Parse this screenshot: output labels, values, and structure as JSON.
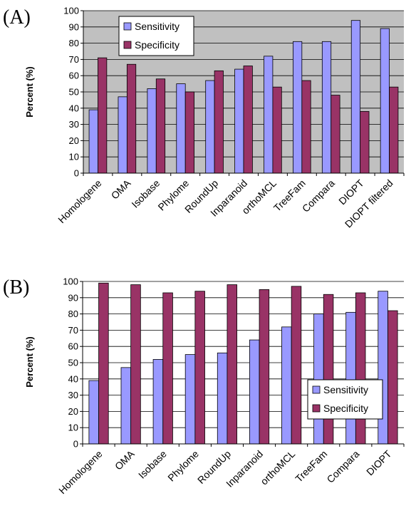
{
  "chart_data": [
    {
      "type": "bar",
      "panel": "(A)",
      "ylabel": "Percent (%)",
      "ylim": [
        0,
        100
      ],
      "yticks": [
        "0",
        "10",
        "20",
        "30",
        "40",
        "50",
        "60",
        "70",
        "80",
        "90",
        "100"
      ],
      "categories": [
        "Homologene",
        "OMA",
        "Isobase",
        "Phylome",
        "RoundUp",
        "Inparanoid",
        "orthoMCL",
        "TreeFam",
        "Compara",
        "DIOPT",
        "DIOPT filtered"
      ],
      "series": [
        {
          "name": "Sensitivity",
          "color": "#9999ff",
          "values": [
            39,
            47,
            52,
            55,
            57,
            64,
            72,
            81,
            81,
            94,
            89
          ]
        },
        {
          "name": "Specificity",
          "color": "#993366",
          "values": [
            71,
            67,
            58,
            50,
            63,
            66,
            53,
            57,
            48,
            38,
            53
          ]
        }
      ],
      "grid": true,
      "plot_background": "#c0c0c0",
      "legend": "top-left"
    },
    {
      "type": "bar",
      "panel": "(B)",
      "ylabel": "Percent (%)",
      "ylim": [
        0,
        100
      ],
      "yticks": [
        "0",
        "10",
        "20",
        "30",
        "40",
        "50",
        "60",
        "70",
        "80",
        "90",
        "100"
      ],
      "categories": [
        "Homologene",
        "OMA",
        "Isobase",
        "Phylome",
        "RoundUp",
        "Inparanoid",
        "orthoMCL",
        "TreeFam",
        "Compara",
        "DIOPT"
      ],
      "series": [
        {
          "name": "Sensitivity",
          "color": "#9999ff",
          "values": [
            39,
            47,
            52,
            55,
            56,
            64,
            72,
            80,
            81,
            94
          ]
        },
        {
          "name": "Specificity",
          "color": "#993366",
          "values": [
            99,
            98,
            93,
            94,
            98,
            95,
            97,
            92,
            93,
            82
          ]
        }
      ],
      "grid": true,
      "plot_background": "#ffffff",
      "legend": "bottom-right"
    }
  ]
}
